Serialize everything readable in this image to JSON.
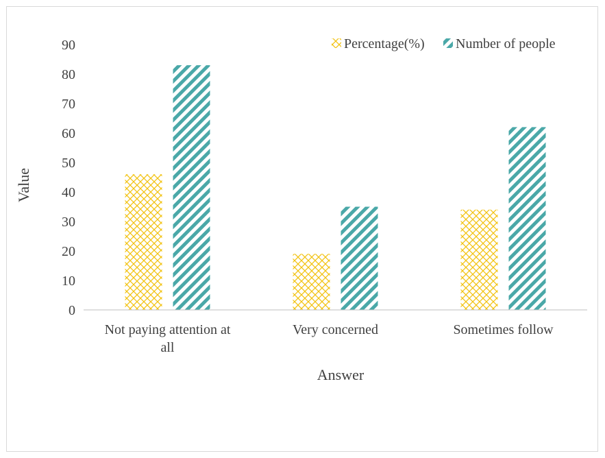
{
  "chart_data": {
    "type": "bar",
    "categories": [
      "Not paying attention at all",
      "Very concerned",
      "Sometimes follow"
    ],
    "category_lines": [
      [
        "Not paying attention at",
        "all"
      ],
      [
        "Very concerned"
      ],
      [
        "Sometimes follow"
      ]
    ],
    "series": [
      {
        "name": "Percentage(%)",
        "values": [
          46,
          19,
          34
        ],
        "color": "#f2c314",
        "pattern": "diagonal-cross"
      },
      {
        "name": "Number of people",
        "values": [
          83,
          35,
          62
        ],
        "color": "#4aa8a8",
        "pattern": "wide-downward-diagonal"
      }
    ],
    "xlabel": "Answer",
    "ylabel": "Value",
    "ylim": [
      0,
      90
    ],
    "yticks": [
      0,
      10,
      20,
      30,
      40,
      50,
      60,
      70,
      80,
      90
    ],
    "grid": false,
    "legend": "top-right"
  }
}
